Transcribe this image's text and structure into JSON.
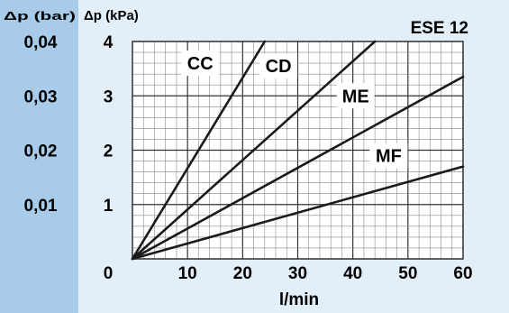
{
  "chart_data": {
    "type": "line",
    "title": "ESE 12",
    "xlabel": "l/min",
    "ylabel": "Δp (kPa)",
    "ylabel_secondary": "Δp (bar)",
    "xlim": [
      0,
      60
    ],
    "ylim": [
      0,
      4
    ],
    "grid": true,
    "x_ticks": [
      "0",
      "10",
      "20",
      "30",
      "40",
      "50",
      "60"
    ],
    "y_ticks": [
      "1",
      "2",
      "3",
      "4"
    ],
    "y_ticks_secondary": [
      "0,01",
      "0,02",
      "0,03",
      "0,04"
    ],
    "series": [
      {
        "name": "CC",
        "x": [
          0,
          24
        ],
        "y": [
          0,
          4.0
        ]
      },
      {
        "name": "CD",
        "x": [
          0,
          44
        ],
        "y": [
          0,
          4.0
        ]
      },
      {
        "name": "ME",
        "x": [
          0,
          60
        ],
        "y": [
          0,
          3.35
        ]
      },
      {
        "name": "MF",
        "x": [
          0,
          60
        ],
        "y": [
          0,
          1.7
        ]
      }
    ]
  },
  "colors": {
    "left_panel": "#a8cbe9",
    "background": "#e2eef8",
    "grid_major": "#333333",
    "grid_minor": "#888888",
    "line": "#1a1a1a"
  }
}
